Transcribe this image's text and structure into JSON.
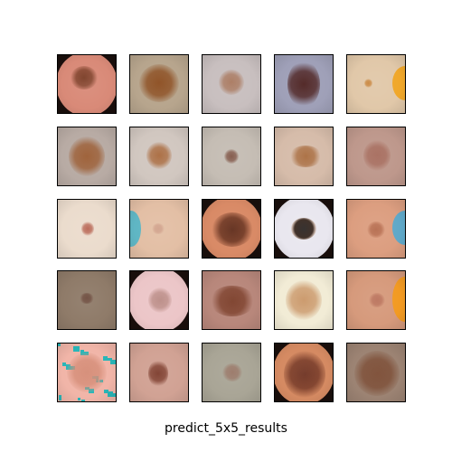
{
  "figure": {
    "caption": "predict_5x5_results"
  },
  "tiles": [
    {
      "bg": "#d98a78",
      "lesion": "#7a3d26",
      "skin_shape": "oval",
      "accent": ""
    },
    {
      "bg": "#b7a58d",
      "lesion": "#8a4a1c",
      "skin_shape": "",
      "accent": ""
    },
    {
      "bg": "#c8bfbf",
      "lesion": "#a8775d",
      "skin_shape": "",
      "accent": ""
    },
    {
      "bg": "#9fa0b8",
      "lesion": "#4a1e1c",
      "skin_shape": "",
      "accent": ""
    },
    {
      "bg": "#e1c8a9",
      "lesion": "#c9863e",
      "skin_shape": "",
      "accent": "#f0a72a"
    },
    {
      "bg": "#b8aba4",
      "lesion": "#9a5a30",
      "skin_shape": "",
      "accent": ""
    },
    {
      "bg": "#d1c7c0",
      "lesion": "#a8683b",
      "skin_shape": "",
      "accent": ""
    },
    {
      "bg": "#c5bdb4",
      "lesion": "#7f5445",
      "skin_shape": "",
      "accent": ""
    },
    {
      "bg": "#d6bcaa",
      "lesion": "#a86b3d",
      "skin_shape": "",
      "accent": ""
    },
    {
      "bg": "#be988c",
      "lesion": "#a56a5b",
      "skin_shape": "",
      "accent": ""
    },
    {
      "bg": "#ebdccd",
      "lesion": "#b76351",
      "skin_shape": "",
      "accent": ""
    },
    {
      "bg": "#e3bfa5",
      "lesion": "#d0a08a",
      "skin_shape": "",
      "accent": "#5fb6c4"
    },
    {
      "bg": "#d98a66",
      "lesion": "#5e2a18",
      "skin_shape": "oval",
      "accent": ""
    },
    {
      "bg": "#e9e7ef",
      "lesion": "#2b2624",
      "skin_shape": "oval",
      "accent": ""
    },
    {
      "bg": "#dc9e80",
      "lesion": "#b46a4c",
      "skin_shape": "",
      "accent": "#5fa8c8"
    },
    {
      "bg": "#8f7b69",
      "lesion": "#6c4a3c",
      "skin_shape": "",
      "accent": ""
    },
    {
      "bg": "#ecc6c8",
      "lesion": "#b98a84",
      "skin_shape": "oval",
      "accent": ""
    },
    {
      "bg": "#b8877b",
      "lesion": "#7a3c27",
      "skin_shape": "",
      "accent": ""
    },
    {
      "bg": "#f2ecd6",
      "lesion": "#c99566",
      "skin_shape": "",
      "accent": ""
    },
    {
      "bg": "#d69a7c",
      "lesion": "#b9715a",
      "skin_shape": "",
      "accent": "#f29a22"
    },
    {
      "bg": "#f1b5a8",
      "lesion": "#d48a74",
      "skin_shape": "",
      "accent": "#2ab6b8"
    },
    {
      "bg": "#d1a294",
      "lesion": "#7b3a2a",
      "skin_shape": "",
      "accent": ""
    },
    {
      "bg": "#a9a596",
      "lesion": "#987565",
      "skin_shape": "",
      "accent": ""
    },
    {
      "bg": "#d58a62",
      "lesion": "#6d3120",
      "skin_shape": "oval",
      "accent": ""
    },
    {
      "bg": "#9c8373",
      "lesion": "#7a4a32",
      "skin_shape": "",
      "accent": ""
    }
  ]
}
